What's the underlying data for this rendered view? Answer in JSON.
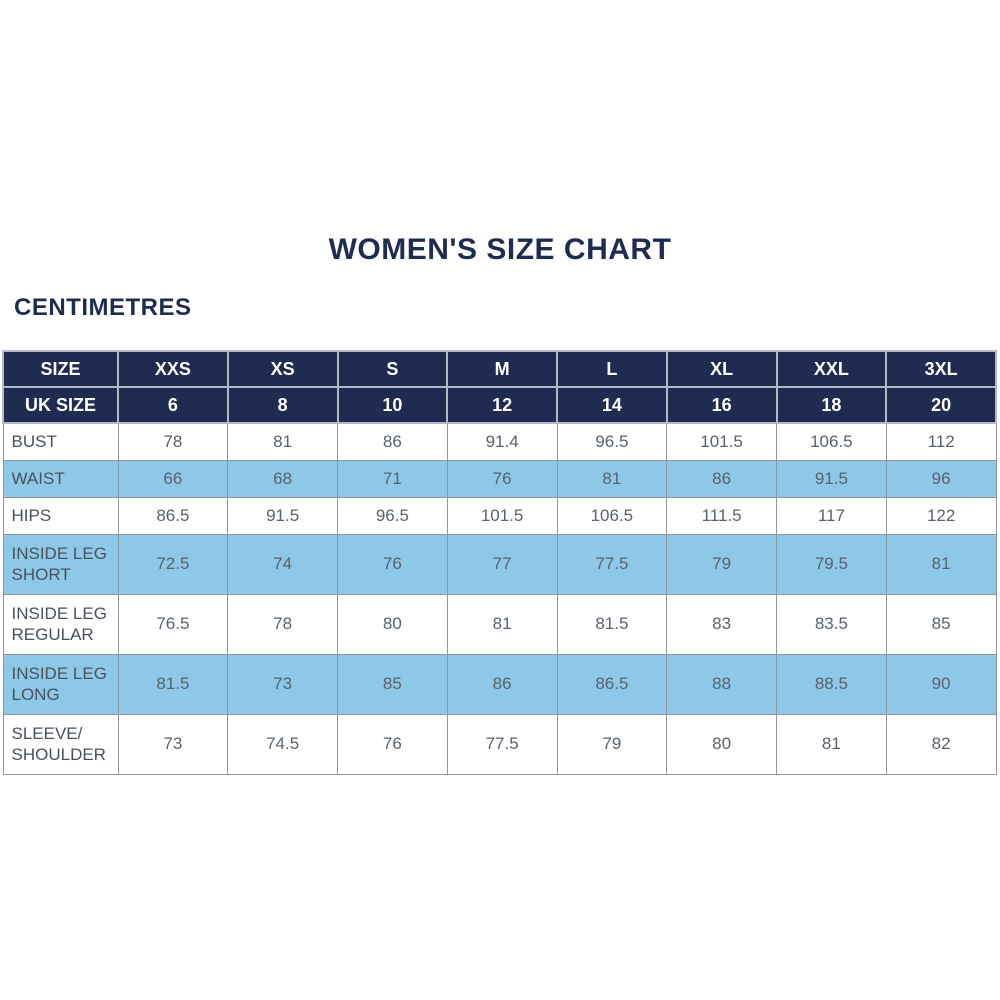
{
  "page": {
    "title": "WOMEN'S SIZE CHART",
    "subtitle": "CENTIMETRES"
  },
  "colors": {
    "header_navy": "#1f2b50",
    "shaded_row_blue": "#8ec8e9",
    "title_navy": "#1f2c51",
    "body_text_gray": "#58626d",
    "grid_border_gray": "#8f969c",
    "header_border_light": "#b2bac4",
    "background": "#ffffff"
  },
  "chart_data": {
    "type": "table",
    "title": "WOMEN'S SIZE CHART",
    "units": "CENTIMETRES",
    "header_rows": [
      {
        "label": "SIZE",
        "values": [
          "XXS",
          "XS",
          "S",
          "M",
          "L",
          "XL",
          "XXL",
          "3XL"
        ]
      },
      {
        "label": "UK SIZE",
        "values": [
          "6",
          "8",
          "10",
          "12",
          "14",
          "16",
          "18",
          "20"
        ]
      }
    ],
    "rows": [
      {
        "label": "BUST",
        "shaded": false,
        "values": [
          "78",
          "81",
          "86",
          "91.4",
          "96.5",
          "101.5",
          "106.5",
          "112"
        ]
      },
      {
        "label": "WAIST",
        "shaded": true,
        "values": [
          "66",
          "68",
          "71",
          "76",
          "81",
          "86",
          "91.5",
          "96"
        ]
      },
      {
        "label": "HIPS",
        "shaded": false,
        "values": [
          "86.5",
          "91.5",
          "96.5",
          "101.5",
          "106.5",
          "111.5",
          "117",
          "122"
        ]
      },
      {
        "label": "INSIDE LEG SHORT",
        "shaded": true,
        "values": [
          "72.5",
          "74",
          "76",
          "77",
          "77.5",
          "79",
          "79.5",
          "81"
        ]
      },
      {
        "label": "INSIDE LEG REGULAR",
        "shaded": false,
        "values": [
          "76.5",
          "78",
          "80",
          "81",
          "81.5",
          "83",
          "83.5",
          "85"
        ]
      },
      {
        "label": "INSIDE LEG LONG",
        "shaded": true,
        "values": [
          "81.5",
          "73",
          "85",
          "86",
          "86.5",
          "88",
          "88.5",
          "90"
        ]
      },
      {
        "label": "SLEEVE/ SHOULDER",
        "shaded": false,
        "values": [
          "73",
          "74.5",
          "76",
          "77.5",
          "79",
          "80",
          "81",
          "82"
        ]
      }
    ]
  }
}
